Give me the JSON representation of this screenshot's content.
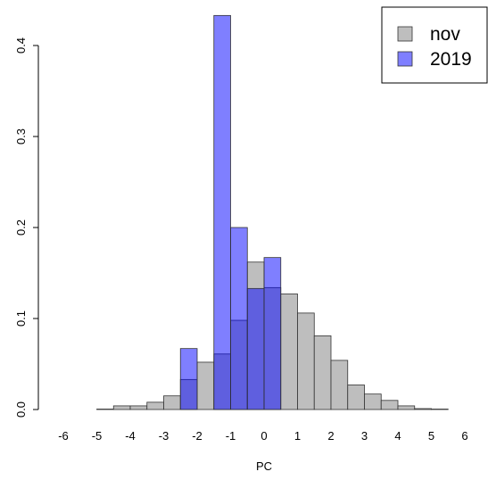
{
  "chart_data": {
    "type": "bar",
    "title": "",
    "xlabel": "PC",
    "ylabel": "",
    "xlim": [
      -6.5,
      6.5
    ],
    "ylim": [
      0,
      0.44
    ],
    "xticks": [
      "-6",
      "-5",
      "-4",
      "-3",
      "-2",
      "-1",
      "0",
      "1",
      "2",
      "3",
      "4",
      "5",
      "6"
    ],
    "yticks": [
      "0.0",
      "0.1",
      "0.2",
      "0.3",
      "0.4"
    ],
    "grid": false,
    "legend_position": "top-right",
    "series": [
      {
        "name": "nov",
        "color": "#bebebe",
        "bin_width": 0.5,
        "bin_starts": [
          -6.5,
          -6.0,
          -5.5,
          -5.0,
          -4.5,
          -4.0,
          -3.5,
          -3.0,
          -2.5,
          -2.0,
          -1.5,
          -1.0,
          -0.5,
          0.0,
          0.5,
          1.0,
          1.5,
          2.0,
          2.5,
          3.0,
          3.5,
          4.0,
          4.5,
          5.0,
          5.5,
          6.0
        ],
        "values": [
          0.0,
          0.0,
          0.0,
          0.0005,
          0.004,
          0.004,
          0.008,
          0.015,
          0.033,
          0.052,
          0.061,
          0.098,
          0.162,
          0.134,
          0.127,
          0.106,
          0.081,
          0.054,
          0.027,
          0.017,
          0.01,
          0.004,
          0.001,
          0.0005,
          0.0,
          0.0
        ]
      },
      {
        "name": "2019",
        "color": "#0000ff",
        "opacity": 0.5,
        "bin_width": 0.5,
        "bin_starts": [
          -3.0,
          -2.5,
          -2.0,
          -1.5,
          -1.0,
          -0.5,
          0.0
        ],
        "values": [
          0.0,
          0.067,
          0.0,
          0.433,
          0.2,
          0.133,
          0.167
        ]
      }
    ]
  }
}
